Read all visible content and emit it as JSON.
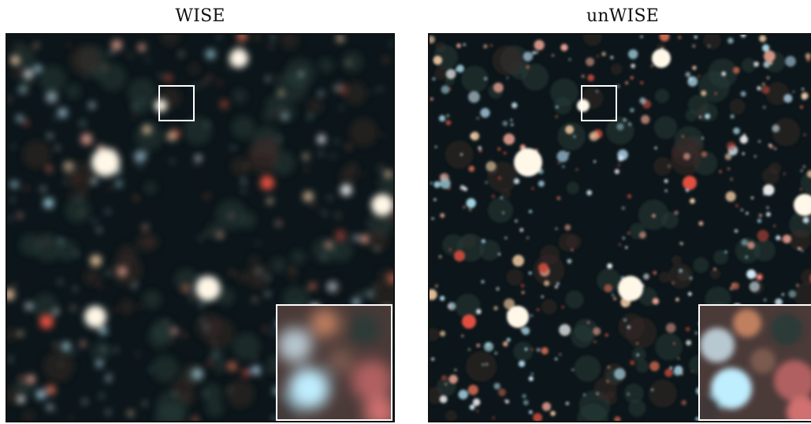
{
  "panels": {
    "left": {
      "title": "WISE"
    },
    "right": {
      "title": "unWISE"
    }
  },
  "colors": {
    "background": "#ffffff",
    "panel_border": "#111111",
    "marker": "#ffffff",
    "sky": "#0a1418"
  }
}
